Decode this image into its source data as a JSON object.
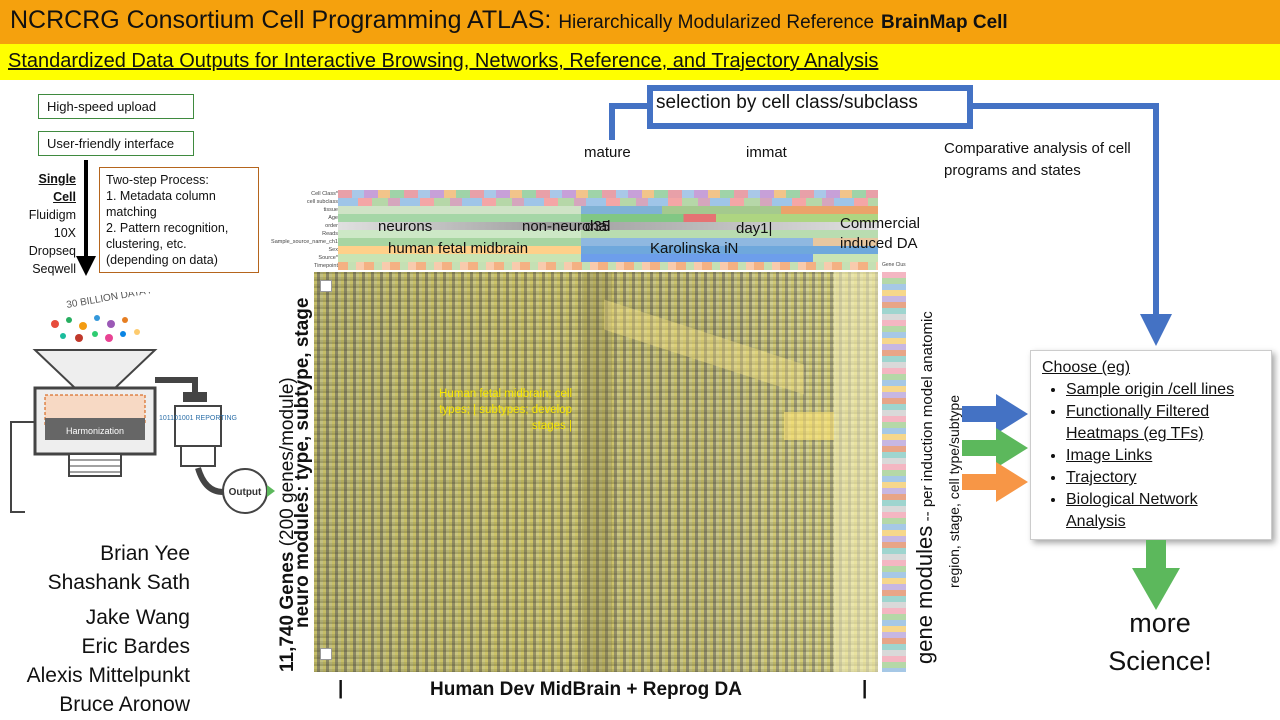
{
  "header": {
    "title_main": "NCRCRG Consortium Cell Programming ATLAS:",
    "title_rest": "Hierarchically Modularized Reference",
    "title_bold": "BrainMap Cell",
    "subtitle": "Standardized Data Outputs for Interactive Browsing, Networks, Reference, and Trajectory Analysis"
  },
  "left": {
    "upload": "High-speed upload",
    "interface": "User-friendly interface",
    "single_cell": "Single Cell",
    "platforms": [
      "Fluidigm",
      "10X",
      "Dropseq",
      "Seqwell"
    ],
    "process_title": "Two-step Process:",
    "process_1": "1. Metadata column matching",
    "process_2": "2. Pattern recognition, clustering, etc. (depending on data)",
    "funnel_top": "30 BILLION DATA POINTS",
    "harmonization": "Harmonization",
    "reporting": "101101001 REPORTING",
    "output": "Output"
  },
  "people": [
    "Brian Yee",
    "Shashank Sath",
    "Jake Wang",
    "Eric Bardes",
    "Alexis Mittelpunkt",
    "Bruce Aronow"
  ],
  "heatmap": {
    "selection": "selection by cell class/subclass",
    "mature": "mature",
    "immat": "immat",
    "comparative": "Comparative analysis of cell programs and states",
    "neurons": "neurons",
    "non_neuronal": "non-neuronal",
    "d35": "d35",
    "day1": "day1|",
    "commercial": "Commercial induced DA",
    "human_fetal": "human fetal midbrain",
    "karolinska": "Karolinska iN",
    "overlay": "Human fetal midbrain; cell types; | subtypes; develop stages |",
    "y_axis_bold": "neuro modules: type, subtype, stage",
    "y_axis_genes": "11,740 Genes",
    "y_axis_rest": "(200 genes/module)",
    "x_axis": "Human Dev MidBrain + Reprog DA",
    "gene_modules": "gene modules",
    "gene_modules_rest": "-- per induction model anatomic",
    "gene_modules_line2": "region, stage, cell type/subtype",
    "gene_clust": "Gene Clus",
    "row_labels": [
      "Cell Class*",
      "cell subclass",
      "tissue",
      "Age",
      "order",
      "Reads",
      "Sample_source_name_ch1",
      "Sex",
      "Source*",
      "Timepoint"
    ]
  },
  "choose": {
    "title": "Choose (eg)",
    "items": [
      "Sample origin /cell lines",
      "Functionally Filtered Heatmaps  (eg TFs)",
      "Image Links",
      "Trajectory",
      "Biological Network Analysis"
    ]
  },
  "more": "more Science!",
  "colors": {
    "title_bg": "#f5a10d",
    "subtitle_bg": "#ffff00",
    "blue_arrow": "#4472c4",
    "green_arrow": "#5cb85c",
    "orange_arrow": "#f79646"
  }
}
